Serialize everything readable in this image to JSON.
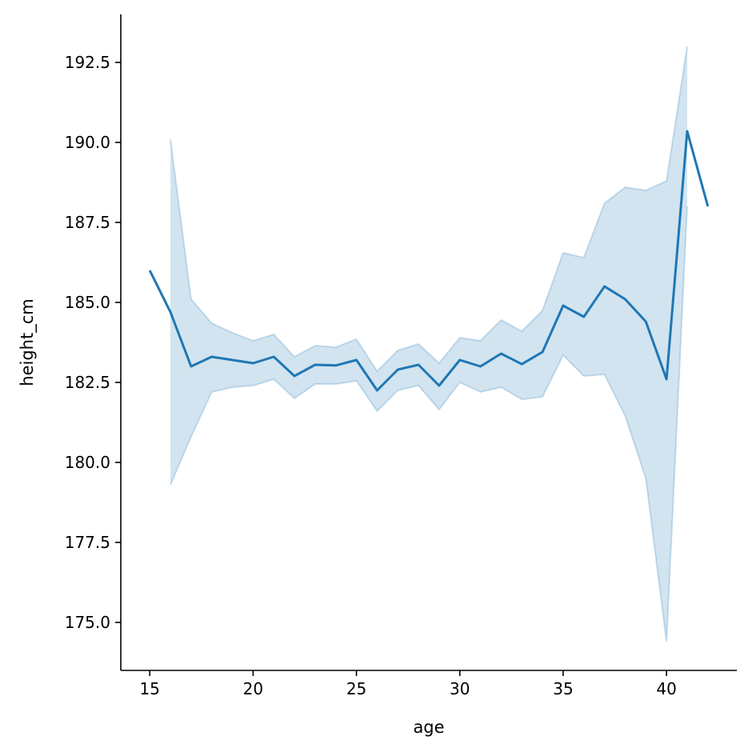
{
  "chart_data": {
    "type": "line",
    "title": "",
    "xlabel": "age",
    "ylabel": "height_cm",
    "xlim": [
      13.6,
      43.4
    ],
    "ylim": [
      173.5,
      194.0
    ],
    "xticks": [
      15,
      20,
      25,
      30,
      35,
      40
    ],
    "yticks": [
      175.0,
      177.5,
      180.0,
      182.5,
      185.0,
      187.5,
      190.0,
      192.5
    ],
    "xtick_labels": [
      "15",
      "20",
      "25",
      "30",
      "35",
      "40"
    ],
    "ytick_labels": [
      "175.0",
      "177.5",
      "180.0",
      "182.5",
      "185.0",
      "187.5",
      "190.0",
      "192.5"
    ],
    "grid": false,
    "legend": "none",
    "colors": {
      "line": "#1f77b4",
      "band": "#1f77b4"
    },
    "series": [
      {
        "x": [
          15,
          16,
          17,
          18,
          19,
          20,
          21,
          22,
          23,
          24,
          25,
          26,
          27,
          28,
          29,
          30,
          31,
          32,
          33,
          34,
          35,
          36,
          37,
          38,
          39,
          40,
          41,
          42
        ],
        "y": [
          186.0,
          184.7,
          183.0,
          183.3,
          183.2,
          183.1,
          183.3,
          182.7,
          183.05,
          183.03,
          183.2,
          182.25,
          182.9,
          183.05,
          182.4,
          183.2,
          183.0,
          183.4,
          183.07,
          183.45,
          184.9,
          184.55,
          185.5,
          185.1,
          184.4,
          182.6,
          190.35,
          188.0
        ],
        "ci_lower": [
          null,
          179.3,
          180.8,
          182.2,
          182.35,
          182.4,
          182.6,
          182.0,
          182.45,
          182.45,
          182.55,
          181.6,
          182.25,
          182.4,
          181.65,
          182.5,
          182.2,
          182.35,
          181.97,
          182.05,
          183.35,
          182.7,
          182.75,
          181.45,
          179.5,
          174.4,
          188.0,
          null
        ],
        "ci_upper": [
          null,
          190.1,
          185.1,
          184.35,
          184.05,
          183.8,
          184.0,
          183.3,
          183.65,
          183.6,
          183.85,
          182.85,
          183.5,
          183.7,
          183.1,
          183.9,
          183.8,
          184.45,
          184.1,
          184.75,
          186.55,
          186.4,
          188.1,
          188.6,
          188.5,
          188.8,
          193.0,
          null
        ]
      }
    ]
  }
}
